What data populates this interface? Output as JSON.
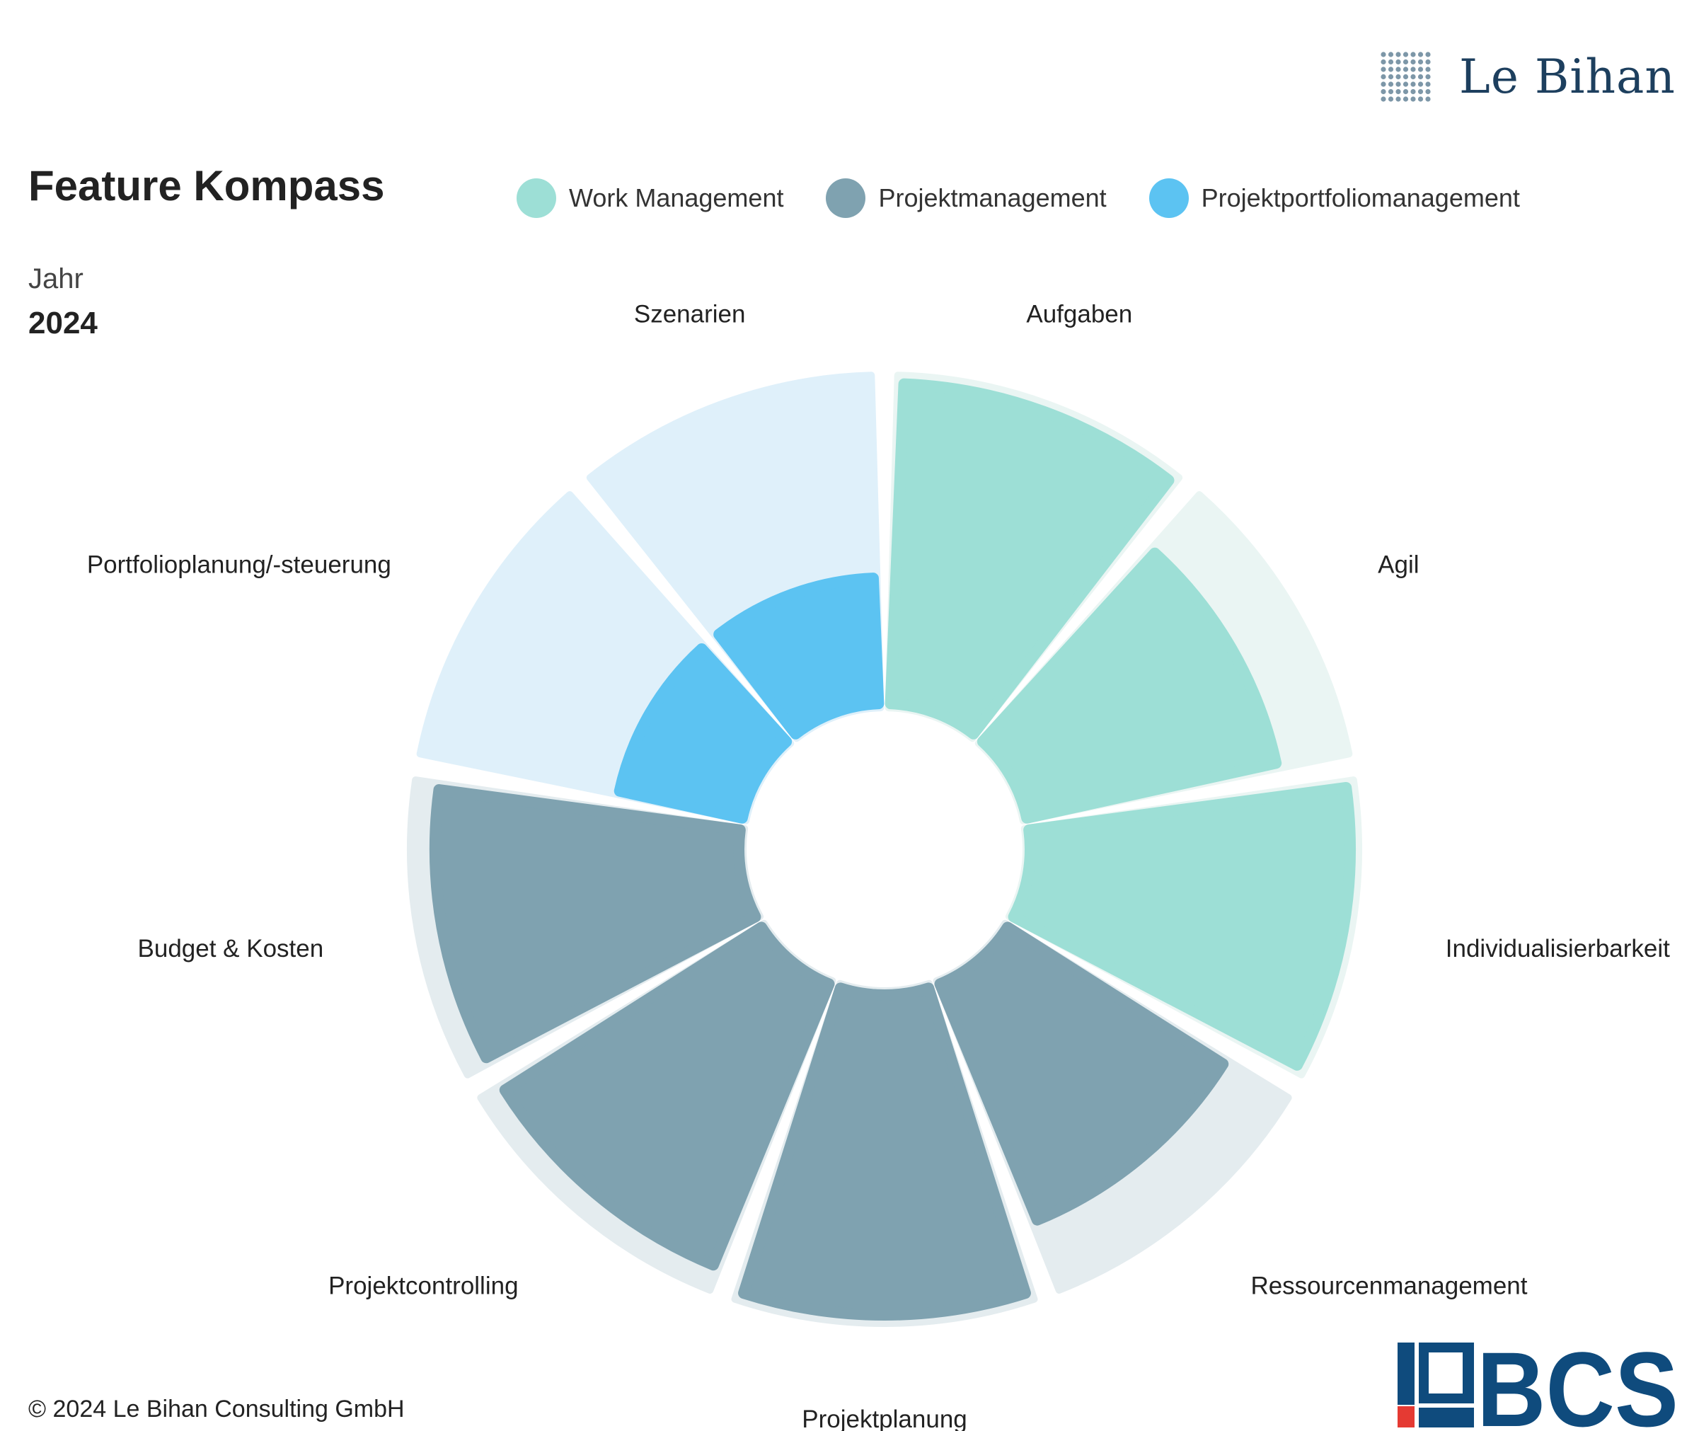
{
  "header": {
    "title": "Feature Kompass",
    "year_label": "Jahr",
    "year_value": "2024"
  },
  "legend": [
    {
      "label": "Work Management",
      "color": "#9ddfd6"
    },
    {
      "label": "Projektmanagement",
      "color": "#7fa2b0"
    },
    {
      "label": "Projektportfoliomanagement",
      "color": "#5cc3f2"
    }
  ],
  "chart_data": {
    "type": "polar-area",
    "categories": [
      "Aufgaben",
      "Agil",
      "Individualisierbarkeit",
      "Ressourcenmanagement",
      "Projektplanung",
      "Projektcontrolling",
      "Budget & Kosten",
      "Portfolioplanung/-steuerung",
      "Szenarien"
    ],
    "series": [
      {
        "name": "Work Management",
        "color": "#9ddfd6",
        "values": [
          1.0,
          0.8,
          1.0,
          null,
          null,
          null,
          null,
          null,
          null
        ]
      },
      {
        "name": "Projektmanagement",
        "color": "#7fa2b0",
        "values": [
          null,
          null,
          null,
          0.8,
          1.0,
          0.95,
          0.95,
          null,
          null
        ]
      },
      {
        "name": "Projektportfoliomanagement",
        "color": "#5cc3f2",
        "values": [
          null,
          null,
          null,
          null,
          null,
          null,
          null,
          0.4,
          0.4
        ]
      }
    ],
    "max_value": 1.0,
    "background_colors": [
      "#eaf5f3",
      "#eaf5f3",
      "#eaf5f3",
      "#e4ecef",
      "#e4ecef",
      "#e4ecef",
      "#e4ecef",
      "#dff0fa",
      "#dff0fa"
    ]
  },
  "footer": {
    "copyright": "© 2024 Le Bihan Consulting GmbH"
  },
  "logos": {
    "top_text": "Le Bihan",
    "bottom_text": "BCS",
    "bottom_color": "#0f4b7d",
    "bottom_accent": "#e53a33"
  }
}
